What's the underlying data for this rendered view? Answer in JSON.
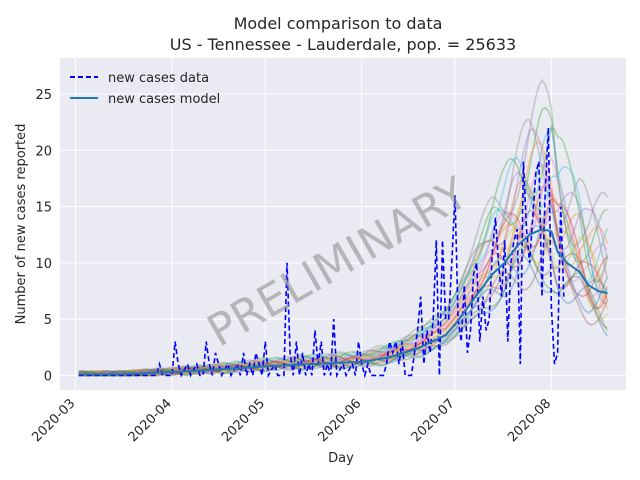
{
  "chart_data": {
    "type": "line",
    "title": "Model comparison to data",
    "subtitle": "US - Tennessee - Lauderdale, pop. = 25633",
    "xlabel": "Day",
    "ylabel": "Number of new cases reported",
    "x_range": [
      "2020-02-25",
      "2020-08-25"
    ],
    "ylim": [
      -1.3,
      28.2
    ],
    "x_ticks": [
      "2020-03-01",
      "2020-04-01",
      "2020-05-01",
      "2020-06-01",
      "2020-07-01",
      "2020-08-01"
    ],
    "x_tick_labels": [
      "2020-03",
      "2020-04",
      "2020-05",
      "2020-06",
      "2020-07",
      "2020-08"
    ],
    "y_ticks": [
      0,
      5,
      10,
      15,
      20,
      25
    ],
    "y_tick_labels": [
      "0",
      "5",
      "10",
      "15",
      "20",
      "25"
    ],
    "grid": true,
    "legend_position": "top-left",
    "watermark": "PRELIMINARY",
    "series": [
      {
        "name": "new cases data",
        "style": "dashed",
        "color": "#0000ff",
        "points": [
          [
            "2020-03-02",
            0
          ],
          [
            "2020-03-10",
            0
          ],
          [
            "2020-03-20",
            0
          ],
          [
            "2020-03-27",
            0
          ],
          [
            "2020-03-28",
            1
          ],
          [
            "2020-03-29",
            0
          ],
          [
            "2020-04-01",
            0
          ],
          [
            "2020-04-02",
            3
          ],
          [
            "2020-04-03",
            1
          ],
          [
            "2020-04-04",
            0
          ],
          [
            "2020-04-06",
            1
          ],
          [
            "2020-04-07",
            0
          ],
          [
            "2020-04-09",
            1
          ],
          [
            "2020-04-10",
            0
          ],
          [
            "2020-04-11",
            0
          ],
          [
            "2020-04-12",
            3
          ],
          [
            "2020-04-13",
            1
          ],
          [
            "2020-04-14",
            0
          ],
          [
            "2020-04-15",
            2
          ],
          [
            "2020-04-16",
            1
          ],
          [
            "2020-04-17",
            0
          ],
          [
            "2020-04-19",
            1
          ],
          [
            "2020-04-20",
            0
          ],
          [
            "2020-04-22",
            1
          ],
          [
            "2020-04-23",
            0
          ],
          [
            "2020-04-24",
            2
          ],
          [
            "2020-04-25",
            0
          ],
          [
            "2020-04-26",
            1
          ],
          [
            "2020-04-27",
            0
          ],
          [
            "2020-04-28",
            2
          ],
          [
            "2020-04-29",
            1
          ],
          [
            "2020-04-30",
            0
          ],
          [
            "2020-05-01",
            3
          ],
          [
            "2020-05-02",
            0
          ],
          [
            "2020-05-04",
            1
          ],
          [
            "2020-05-05",
            0
          ],
          [
            "2020-05-07",
            0
          ],
          [
            "2020-05-08",
            10
          ],
          [
            "2020-05-09",
            2
          ],
          [
            "2020-05-10",
            0
          ],
          [
            "2020-05-11",
            3
          ],
          [
            "2020-05-12",
            0
          ],
          [
            "2020-05-13",
            2
          ],
          [
            "2020-05-14",
            0
          ],
          [
            "2020-05-15",
            1
          ],
          [
            "2020-05-16",
            0
          ],
          [
            "2020-05-17",
            4
          ],
          [
            "2020-05-18",
            1
          ],
          [
            "2020-05-19",
            3
          ],
          [
            "2020-05-20",
            0
          ],
          [
            "2020-05-21",
            1
          ],
          [
            "2020-05-22",
            0
          ],
          [
            "2020-05-23",
            5
          ],
          [
            "2020-05-24",
            0
          ],
          [
            "2020-05-26",
            1
          ],
          [
            "2020-05-27",
            0
          ],
          [
            "2020-05-29",
            1
          ],
          [
            "2020-05-30",
            0
          ],
          [
            "2020-05-31",
            3
          ],
          [
            "2020-06-01",
            1
          ],
          [
            "2020-06-02",
            0
          ],
          [
            "2020-06-03",
            1
          ],
          [
            "2020-06-04",
            0
          ],
          [
            "2020-06-08",
            0
          ],
          [
            "2020-06-09",
            1
          ],
          [
            "2020-06-10",
            3
          ],
          [
            "2020-06-11",
            2
          ],
          [
            "2020-06-12",
            3
          ],
          [
            "2020-06-13",
            1
          ],
          [
            "2020-06-14",
            3
          ],
          [
            "2020-06-15",
            0
          ],
          [
            "2020-06-17",
            0
          ],
          [
            "2020-06-18",
            2
          ],
          [
            "2020-06-19",
            4
          ],
          [
            "2020-06-20",
            7
          ],
          [
            "2020-06-21",
            1
          ],
          [
            "2020-06-22",
            4
          ],
          [
            "2020-06-23",
            2
          ],
          [
            "2020-06-24",
            5
          ],
          [
            "2020-06-25",
            12
          ],
          [
            "2020-06-26",
            0
          ],
          [
            "2020-06-27",
            12
          ],
          [
            "2020-06-28",
            5
          ],
          [
            "2020-06-29",
            5
          ],
          [
            "2020-06-30",
            10
          ],
          [
            "2020-07-01",
            16
          ],
          [
            "2020-07-02",
            5
          ],
          [
            "2020-07-03",
            3
          ],
          [
            "2020-07-04",
            8
          ],
          [
            "2020-07-05",
            2
          ],
          [
            "2020-07-06",
            4
          ],
          [
            "2020-07-07",
            9
          ],
          [
            "2020-07-08",
            10
          ],
          [
            "2020-07-09",
            3
          ],
          [
            "2020-07-10",
            7
          ],
          [
            "2020-07-11",
            4
          ],
          [
            "2020-07-12",
            5
          ],
          [
            "2020-07-13",
            11
          ],
          [
            "2020-07-14",
            14
          ],
          [
            "2020-07-15",
            10
          ],
          [
            "2020-07-16",
            7
          ],
          [
            "2020-07-17",
            12
          ],
          [
            "2020-07-18",
            3
          ],
          [
            "2020-07-19",
            10
          ],
          [
            "2020-07-20",
            12
          ],
          [
            "2020-07-21",
            13
          ],
          [
            "2020-07-22",
            1
          ],
          [
            "2020-07-23",
            19
          ],
          [
            "2020-07-24",
            13
          ],
          [
            "2020-07-25",
            10
          ],
          [
            "2020-07-26",
            14
          ],
          [
            "2020-07-27",
            18
          ],
          [
            "2020-07-28",
            19
          ],
          [
            "2020-07-29",
            7
          ],
          [
            "2020-07-30",
            16
          ],
          [
            "2020-07-31",
            22
          ],
          [
            "2020-08-01",
            6
          ],
          [
            "2020-08-02",
            1
          ],
          [
            "2020-08-03",
            2
          ],
          [
            "2020-08-04",
            15
          ],
          [
            "2020-08-05",
            7
          ]
        ]
      },
      {
        "name": "new cases model",
        "style": "solid",
        "color": "#1f77b4",
        "points": [
          [
            "2020-03-02",
            0.1
          ],
          [
            "2020-03-15",
            0.1
          ],
          [
            "2020-04-01",
            0.3
          ],
          [
            "2020-04-15",
            0.5
          ],
          [
            "2020-05-01",
            0.8
          ],
          [
            "2020-05-15",
            1.0
          ],
          [
            "2020-06-01",
            1.2
          ],
          [
            "2020-06-10",
            1.6
          ],
          [
            "2020-06-20",
            2.5
          ],
          [
            "2020-06-28",
            3.6
          ],
          [
            "2020-07-01",
            4.5
          ],
          [
            "2020-07-05",
            6.0
          ],
          [
            "2020-07-09",
            7.5
          ],
          [
            "2020-07-13",
            9.0
          ],
          [
            "2020-07-17",
            10.0
          ],
          [
            "2020-07-21",
            11.5
          ],
          [
            "2020-07-25",
            12.5
          ],
          [
            "2020-07-29",
            13.0
          ],
          [
            "2020-08-01",
            12.8
          ],
          [
            "2020-08-03",
            11.0
          ],
          [
            "2020-08-06",
            10.0
          ],
          [
            "2020-08-10",
            9.2
          ],
          [
            "2020-08-13",
            8.0
          ],
          [
            "2020-08-16",
            7.5
          ],
          [
            "2020-08-19",
            7.3
          ]
        ]
      }
    ]
  }
}
